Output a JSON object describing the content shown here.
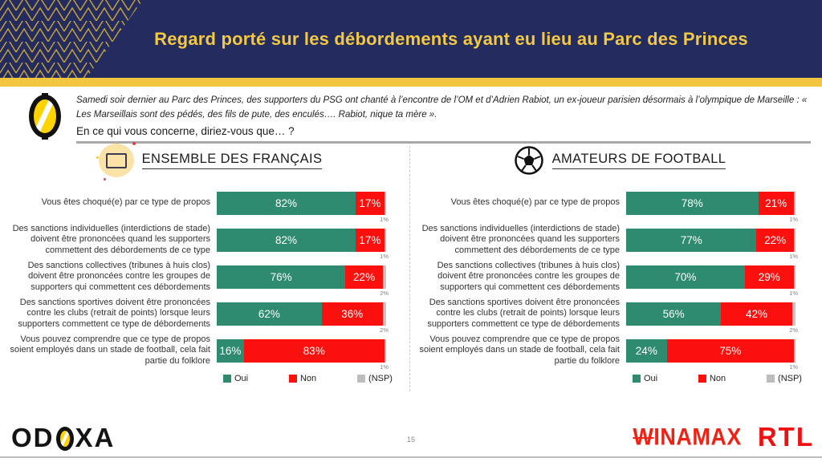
{
  "header": {
    "title": "Regard porté sur les débordements ayant eu lieu au Parc des Princes"
  },
  "intro": {
    "context": "Samedi soir dernier au Parc des Princes, des supporters du PSG ont chanté à l’encontre de l’OM et d’Adrien Rabiot, un ex-joueur parisien désormais à l’olympique de Marseille : « Les Marseillais sont des pédés, des fils de pute, des enculés…. Rabiot, nique ta mère ».",
    "question": "En ce qui vous concerne, diriez-vous que… ?"
  },
  "legend": {
    "oui": "Oui",
    "non": "Non",
    "nsp": "(NSP)"
  },
  "colors": {
    "oui_green": "#2e8b6f",
    "non_red": "#fc100d",
    "nsp_gray": "#c6c6c6",
    "navy": "#242b5e",
    "gold": "#f2c63e",
    "brand_red": "#ee1111"
  },
  "chart_data": [
    {
      "type": "bar",
      "orientation": "horizontal",
      "stacked": true,
      "title": "ENSEMBLE DES FRANÇAIS",
      "icon": "france-flag",
      "legend_position": "bottom",
      "series_names": [
        "Oui",
        "Non",
        "(NSP)"
      ],
      "xlim": [
        0,
        100
      ],
      "categories": [
        "Vous êtes choqué(e) par ce type de propos",
        "Des sanctions individuelles (interdictions de stade) doivent être prononcées quand les supporters commettent des débordements de ce type",
        "Des sanctions collectives (tribunes à huis clos) doivent être prononcées contre les groupes de supporters qui commettent ces débordements",
        "Des sanctions sportives doivent être prononcées contre les clubs (retrait de points) lorsque leurs supporters commettent ce type de débordements",
        "Vous pouvez comprendre que ce type de propos soient employés dans un stade de football, cela fait partie du folklore"
      ],
      "rows": [
        {
          "oui": 82,
          "non": 17,
          "nsp": 1,
          "oui_label": "82%",
          "non_label": "17%",
          "nsp_label": "1%"
        },
        {
          "oui": 82,
          "non": 17,
          "nsp": 1,
          "oui_label": "82%",
          "non_label": "17%",
          "nsp_label": "1%"
        },
        {
          "oui": 76,
          "non": 22,
          "nsp": 2,
          "oui_label": "76%",
          "non_label": "22%",
          "nsp_label": "2%"
        },
        {
          "oui": 62,
          "non": 36,
          "nsp": 2,
          "oui_label": "62%",
          "non_label": "36%",
          "nsp_label": "2%"
        },
        {
          "oui": 16,
          "non": 83,
          "nsp": 1,
          "oui_label": "16%",
          "non_label": "83%",
          "nsp_label": "1%"
        }
      ]
    },
    {
      "type": "bar",
      "orientation": "horizontal",
      "stacked": true,
      "title": "AMATEURS DE FOOTBALL",
      "icon": "soccer-ball",
      "legend_position": "bottom",
      "series_names": [
        "Oui",
        "Non",
        "(NSP)"
      ],
      "xlim": [
        0,
        100
      ],
      "categories": [
        "Vous êtes choqué(e) par ce type de propos",
        "Des sanctions individuelles (interdictions de stade) doivent être prononcées quand les supporters commettent des débordements de ce type",
        "Des sanctions collectives (tribunes à huis clos) doivent être prononcées contre les groupes de supporters qui commettent ces débordements",
        "Des sanctions sportives doivent être prononcées contre les clubs (retrait de points) lorsque leurs supporters commettent ce type de débordements",
        "Vous pouvez comprendre que ce type de propos soient employés dans un stade de football, cela fait partie du folklore"
      ],
      "rows": [
        {
          "oui": 78,
          "non": 21,
          "nsp": 1,
          "oui_label": "78%",
          "non_label": "21%",
          "nsp_label": "1%"
        },
        {
          "oui": 77,
          "non": 22,
          "nsp": 1,
          "oui_label": "77%",
          "non_label": "22%",
          "nsp_label": "1%"
        },
        {
          "oui": 70,
          "non": 29,
          "nsp": 1,
          "oui_label": "70%",
          "non_label": "29%",
          "nsp_label": "1%"
        },
        {
          "oui": 56,
          "non": 42,
          "nsp": 2,
          "oui_label": "56%",
          "non_label": "42%",
          "nsp_label": "2%"
        },
        {
          "oui": 24,
          "non": 75,
          "nsp": 1,
          "oui_label": "24%",
          "non_label": "75%",
          "nsp_label": "1%"
        }
      ]
    }
  ],
  "footer": {
    "odoxa_left": "OD",
    "odoxa_right": "XA",
    "page": "15",
    "winamax_w": "W",
    "winamax_rest": "INAMAX",
    "rtl": "RTL"
  }
}
